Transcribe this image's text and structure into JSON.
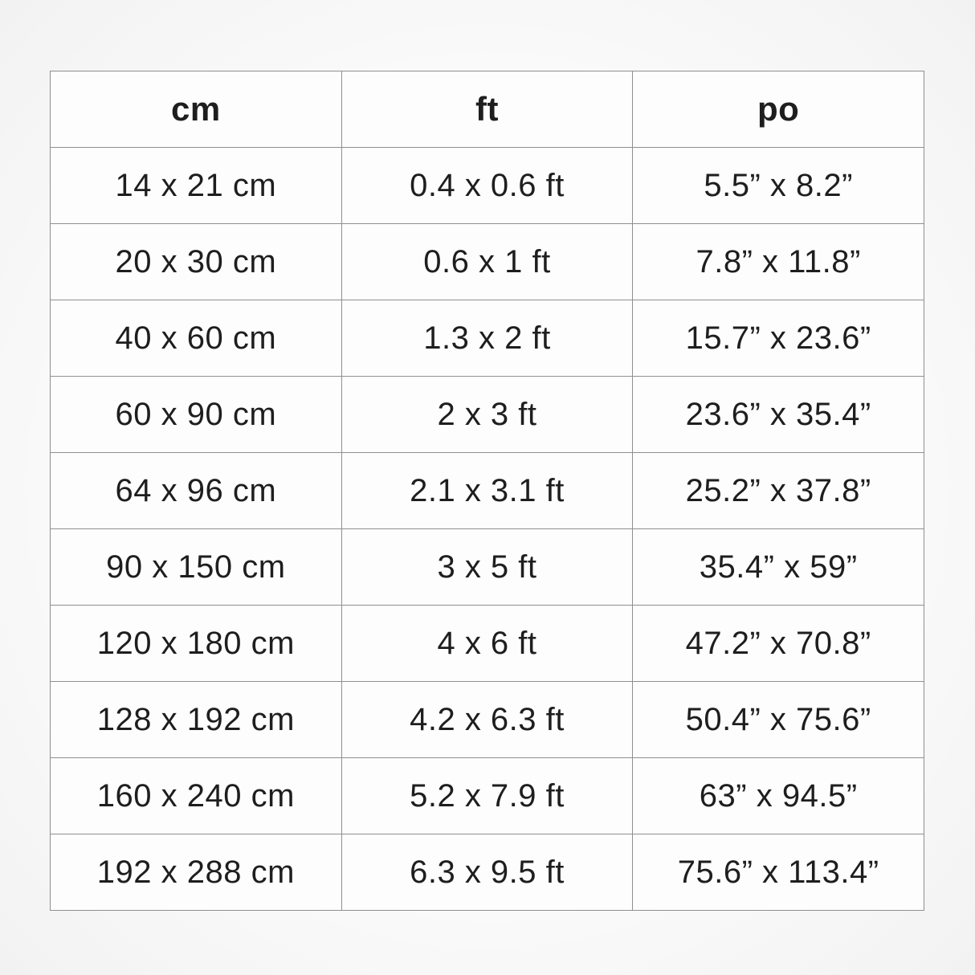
{
  "page": {
    "background_color": "#fafafa",
    "border_color": "#8f8f8f",
    "text_color": "#1e1e1e"
  },
  "table": {
    "headers": [
      "cm",
      "ft",
      "po"
    ],
    "rows": [
      {
        "cm": "14 x 21 cm",
        "ft": "0.4 x 0.6 ft",
        "po": "5.5” x 8.2”"
      },
      {
        "cm": "20 x 30 cm",
        "ft": "0.6 x 1 ft",
        "po": "7.8” x 11.8”"
      },
      {
        "cm": "40 x 60 cm",
        "ft": "1.3 x 2 ft",
        "po": "15.7” x 23.6”"
      },
      {
        "cm": "60 x 90 cm",
        "ft": "2 x 3 ft",
        "po": "23.6” x 35.4”"
      },
      {
        "cm": "64 x 96 cm",
        "ft": "2.1 x 3.1 ft",
        "po": "25.2” x 37.8”"
      },
      {
        "cm": "90 x 150 cm",
        "ft": "3 x 5 ft",
        "po": "35.4” x 59”"
      },
      {
        "cm": "120 x 180 cm",
        "ft": "4 x 6 ft",
        "po": "47.2” x 70.8”"
      },
      {
        "cm": "128 x 192 cm",
        "ft": "4.2 x 6.3 ft",
        "po": "50.4” x 75.6”"
      },
      {
        "cm": "160 x 240 cm",
        "ft": "5.2 x 7.9 ft",
        "po": "63” x 94.5”"
      },
      {
        "cm": "192 x 288 cm",
        "ft": "6.3 x 9.5 ft",
        "po": "75.6” x 113.4”"
      }
    ]
  },
  "chart_data": {
    "type": "table",
    "title": "",
    "columns": [
      "cm",
      "ft",
      "po"
    ],
    "rows": [
      [
        "14 x 21 cm",
        "0.4 x 0.6 ft",
        "5.5” x 8.2”"
      ],
      [
        "20 x 30 cm",
        "0.6 x 1 ft",
        "7.8” x 11.8”"
      ],
      [
        "40 x 60 cm",
        "1.3 x 2 ft",
        "15.7” x 23.6”"
      ],
      [
        "60 x 90 cm",
        "2 x 3 ft",
        "23.6” x 35.4”"
      ],
      [
        "64 x 96 cm",
        "2.1 x 3.1 ft",
        "25.2” x 37.8”"
      ],
      [
        "90 x 150 cm",
        "3 x 5 ft",
        "35.4” x 59”"
      ],
      [
        "120 x 180 cm",
        "4 x 6 ft",
        "47.2” x 70.8”"
      ],
      [
        "128 x 192 cm",
        "4.2 x 6.3 ft",
        "50.4” x 75.6”"
      ],
      [
        "160 x 240 cm",
        "5.2 x 7.9 ft",
        "63” x 94.5”"
      ],
      [
        "192 x 288 cm",
        "6.3 x 9.5 ft",
        "75.6” x 113.4”"
      ]
    ]
  }
}
